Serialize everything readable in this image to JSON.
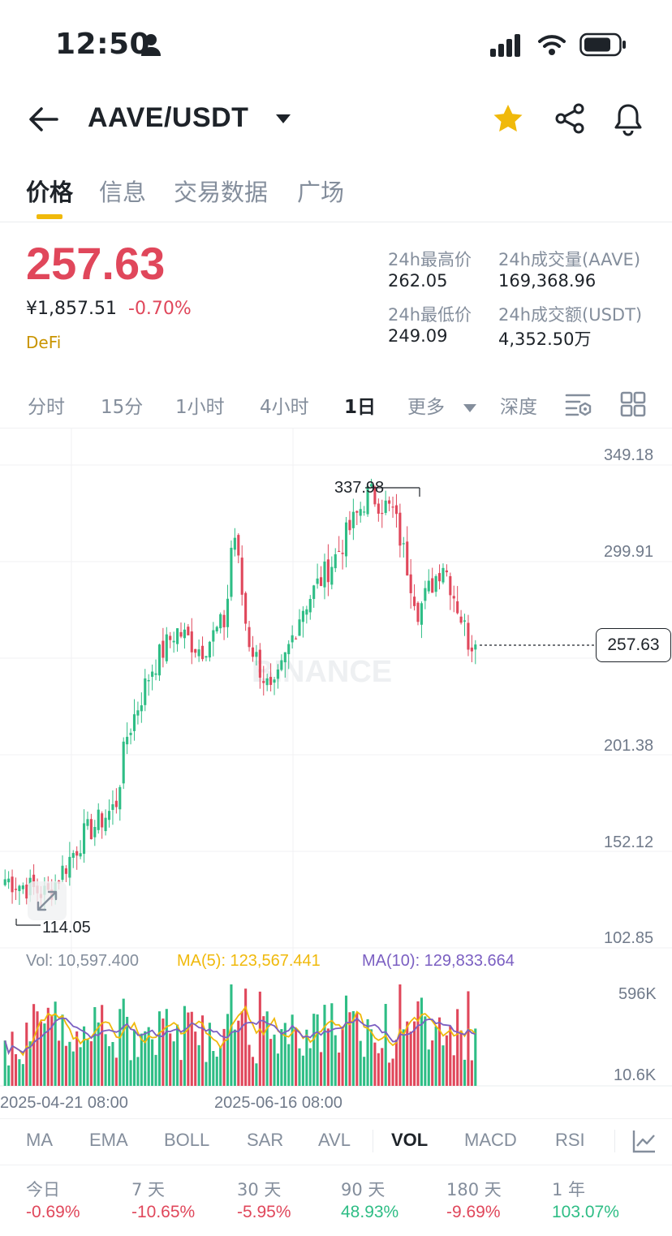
{
  "status": {
    "time": "12:50"
  },
  "header": {
    "pair": "AAVE/USDT"
  },
  "tabs": [
    "价格",
    "信息",
    "交易数据",
    "广场"
  ],
  "ticker": {
    "price": "257.63",
    "cny": "¥1,857.51",
    "change": "-0.70%",
    "tag": "DeFi",
    "high_label": "24h最高价",
    "high": "262.05",
    "low_label": "24h最低价",
    "low": "249.09",
    "vol_base_label": "24h成交量(AAVE)",
    "vol_base": "169,368.96",
    "vol_quote_label": "24h成交额(USDT)",
    "vol_quote": "4,352.50万"
  },
  "intervals": [
    "分时",
    "15分",
    "1小时",
    "4小时",
    "1日",
    "更多",
    "深度"
  ],
  "chart": {
    "price_ticks": [
      "349.18",
      "299.91",
      "201.38",
      "152.12",
      "102.85"
    ],
    "last_price": "257.63",
    "max_label": "337.98",
    "min_label": "114.05",
    "watermark": "BINANCE",
    "vol_label": "Vol: 10,597.400",
    "ma5_label": "MA(5): 123,567.441",
    "ma10_label": "MA(10): 129,833.664",
    "vol_ticks": [
      "596K",
      "10.6K"
    ],
    "date_ticks": [
      "2025-04-21 08:00",
      "2025-06-16 08:00"
    ],
    "colors": {
      "up": "#2ebd85",
      "down": "#e0475b",
      "ma5": "#f0b90b",
      "ma10": "#7b5fc2"
    }
  },
  "indicators": [
    "MA",
    "EMA",
    "BOLL",
    "SAR",
    "AVL",
    "VOL",
    "MACD",
    "RSI"
  ],
  "performance": [
    {
      "label": "今日",
      "value": "-0.69%"
    },
    {
      "label": "7 天",
      "value": "-10.65%"
    },
    {
      "label": "30 天",
      "value": "-5.95%"
    },
    {
      "label": "90 天",
      "value": "48.93%"
    },
    {
      "label": "180 天",
      "value": "-9.69%"
    },
    {
      "label": "1 年",
      "value": "103.07%"
    }
  ],
  "chart_data": {
    "type": "candlestick",
    "y_axis_ticks": [
      102.85,
      152.12,
      201.38,
      250.65,
      299.91,
      349.18
    ],
    "last_price": 257.63,
    "period_high": 337.98,
    "period_low": 114.05,
    "volume_ticks": [
      "596K",
      "10.6K"
    ],
    "close_points": [
      {
        "x": "2025-04-09",
        "y": 138
      },
      {
        "x": "2025-04-21",
        "y": 130
      },
      {
        "x": "2025-05-01",
        "y": 160
      },
      {
        "x": "2025-05-10",
        "y": 175
      },
      {
        "x": "2025-05-13",
        "y": 210
      },
      {
        "x": "2025-05-20",
        "y": 245
      },
      {
        "x": "2025-05-27",
        "y": 265
      },
      {
        "x": "2025-06-03",
        "y": 255
      },
      {
        "x": "2025-06-10",
        "y": 270
      },
      {
        "x": "2025-06-12",
        "y": 320
      },
      {
        "x": "2025-06-16",
        "y": 262
      },
      {
        "x": "2025-06-23",
        "y": 230
      },
      {
        "x": "2025-07-01",
        "y": 275
      },
      {
        "x": "2025-07-10",
        "y": 300
      },
      {
        "x": "2025-07-20",
        "y": 335
      },
      {
        "x": "2025-07-27",
        "y": 325
      },
      {
        "x": "2025-08-03",
        "y": 275
      },
      {
        "x": "2025-08-10",
        "y": 300
      },
      {
        "x": "2025-08-17",
        "y": 260
      },
      {
        "x": "2025-08-19",
        "y": 257.63
      }
    ]
  }
}
